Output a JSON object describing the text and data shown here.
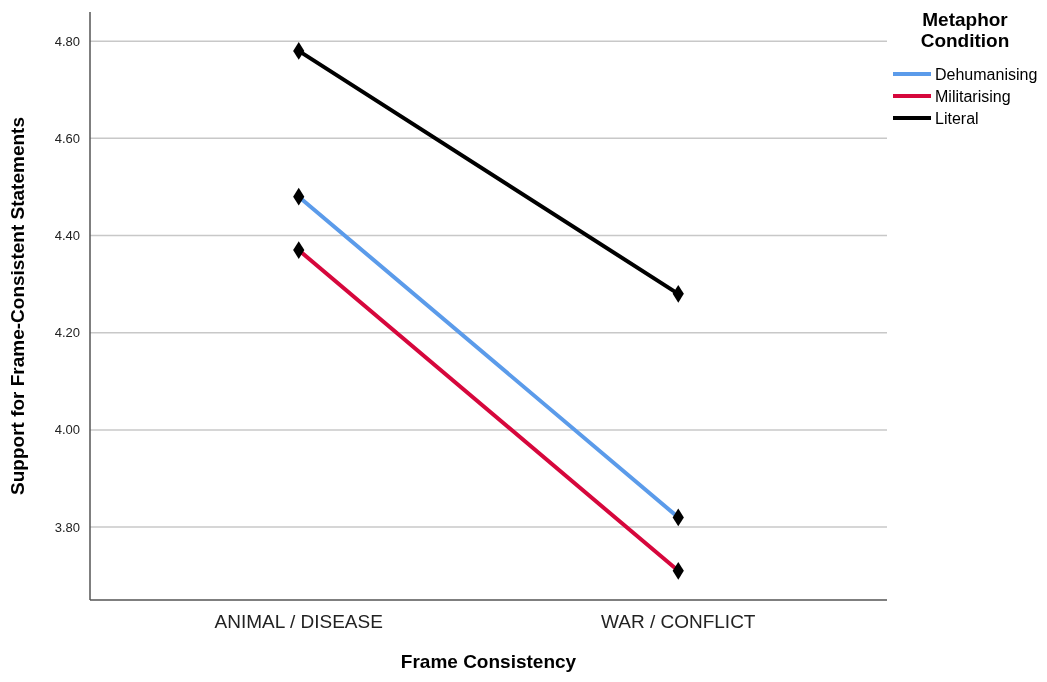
{
  "chart_data": {
    "type": "line",
    "xlabel": "Frame Consistency",
    "ylabel": "Support for Frame-Consistent Statements",
    "legend_title": "Metaphor Condition",
    "categories": [
      "ANIMAL / DISEASE",
      "WAR / CONFLICT"
    ],
    "series": [
      {
        "name": "Dehumanising",
        "color": "#5b9bea",
        "values": [
          4.48,
          3.82
        ]
      },
      {
        "name": "Militarising",
        "color": "#d6073c",
        "values": [
          4.37,
          3.71
        ]
      },
      {
        "name": "Literal",
        "color": "#000000",
        "values": [
          4.78,
          4.28
        ]
      }
    ],
    "ylim": [
      3.65,
      4.86
    ],
    "yticks": [
      {
        "value": 3.8,
        "label": "3.80"
      },
      {
        "value": 4.0,
        "label": "4.00"
      },
      {
        "value": 4.2,
        "label": "4.20"
      },
      {
        "value": 4.4,
        "label": "4.40"
      },
      {
        "value": 4.6,
        "label": "4.60"
      },
      {
        "value": 4.8,
        "label": "4.80"
      }
    ],
    "grid": "y",
    "legend": "top right",
    "marker": "diamond",
    "line_style": "solid"
  }
}
